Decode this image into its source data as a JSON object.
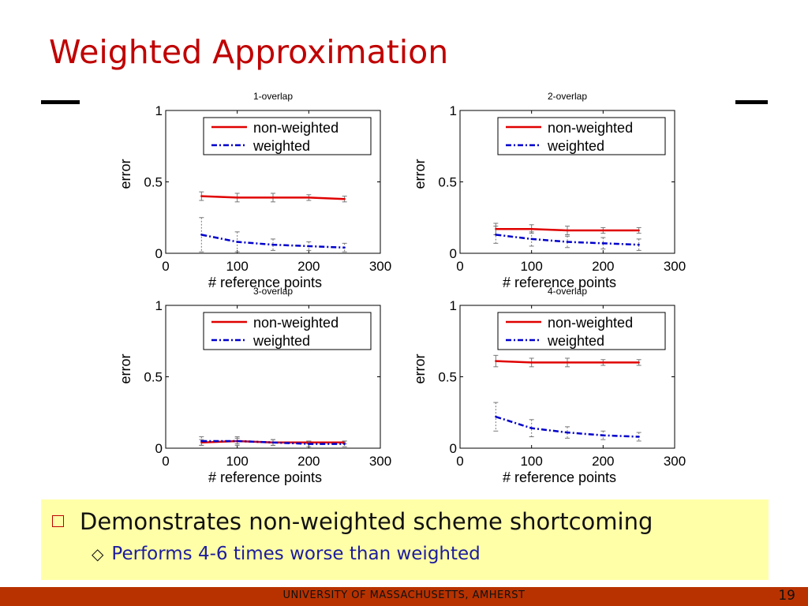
{
  "slide": {
    "title": "Weighted Approximation",
    "bullet_main": "Demonstrates non-weighted scheme shortcoming",
    "bullet_sub": "Performs 4-6 times worse than weighted",
    "footer": "UNIVERSITY OF MASSACHUSETTS, AMHERST",
    "page_number": "19"
  },
  "colors": {
    "title": "#c00000",
    "non_weighted": "#e00000",
    "weighted": "#0000cc",
    "callout": "#ffffa8",
    "footer": "#b83200"
  },
  "chart_data": [
    {
      "type": "line",
      "title": "1-overlap",
      "xlabel": "# reference points",
      "ylabel": "error",
      "xlim": [
        0,
        300
      ],
      "ylim": [
        0,
        1
      ],
      "xticks": [
        "0",
        "100",
        "200",
        "300"
      ],
      "yticks": [
        "0",
        "0.5",
        "1"
      ],
      "legend": "top-right",
      "x": [
        50,
        100,
        150,
        200,
        250
      ],
      "series": [
        {
          "name": "non-weighted",
          "values": [
            0.4,
            0.39,
            0.39,
            0.39,
            0.38
          ],
          "err": [
            0.03,
            0.03,
            0.03,
            0.02,
            0.02
          ]
        },
        {
          "name": "weighted",
          "values": [
            0.13,
            0.08,
            0.06,
            0.05,
            0.04
          ],
          "err": [
            0.12,
            0.07,
            0.04,
            0.03,
            0.03
          ]
        }
      ]
    },
    {
      "type": "line",
      "title": "2-overlap",
      "xlabel": "# reference points",
      "ylabel": "error",
      "xlim": [
        0,
        300
      ],
      "ylim": [
        0,
        1
      ],
      "xticks": [
        "0",
        "100",
        "200",
        "300"
      ],
      "yticks": [
        "0",
        "0.5",
        "1"
      ],
      "legend": "top-right",
      "x": [
        50,
        100,
        150,
        200,
        250
      ],
      "series": [
        {
          "name": "non-weighted",
          "values": [
            0.17,
            0.17,
            0.16,
            0.16,
            0.16
          ],
          "err": [
            0.04,
            0.03,
            0.03,
            0.02,
            0.02
          ]
        },
        {
          "name": "weighted",
          "values": [
            0.13,
            0.1,
            0.08,
            0.07,
            0.06
          ],
          "err": [
            0.06,
            0.05,
            0.04,
            0.04,
            0.04
          ]
        }
      ]
    },
    {
      "type": "line",
      "title": "3-overlap",
      "xlabel": "# reference points",
      "ylabel": "error",
      "xlim": [
        0,
        300
      ],
      "ylim": [
        0,
        1
      ],
      "xticks": [
        "0",
        "100",
        "200",
        "300"
      ],
      "yticks": [
        "0",
        "0.5",
        "1"
      ],
      "legend": "top-right",
      "x": [
        50,
        100,
        150,
        200,
        250
      ],
      "series": [
        {
          "name": "non-weighted",
          "values": [
            0.04,
            0.05,
            0.04,
            0.04,
            0.04
          ],
          "err": [
            0.02,
            0.02,
            0.02,
            0.01,
            0.01
          ]
        },
        {
          "name": "weighted",
          "values": [
            0.05,
            0.05,
            0.04,
            0.03,
            0.03
          ],
          "err": [
            0.03,
            0.03,
            0.02,
            0.02,
            0.02
          ]
        }
      ]
    },
    {
      "type": "line",
      "title": "4-overlap",
      "xlabel": "# reference points",
      "ylabel": "error",
      "xlim": [
        0,
        300
      ],
      "ylim": [
        0,
        1
      ],
      "xticks": [
        "0",
        "100",
        "200",
        "300"
      ],
      "yticks": [
        "0",
        "0.5",
        "1"
      ],
      "legend": "top-right",
      "x": [
        50,
        100,
        150,
        200,
        250
      ],
      "series": [
        {
          "name": "non-weighted",
          "values": [
            0.61,
            0.6,
            0.6,
            0.6,
            0.6
          ],
          "err": [
            0.04,
            0.03,
            0.03,
            0.02,
            0.02
          ]
        },
        {
          "name": "weighted",
          "values": [
            0.22,
            0.14,
            0.11,
            0.09,
            0.08
          ],
          "err": [
            0.1,
            0.06,
            0.04,
            0.03,
            0.03
          ]
        }
      ]
    }
  ]
}
